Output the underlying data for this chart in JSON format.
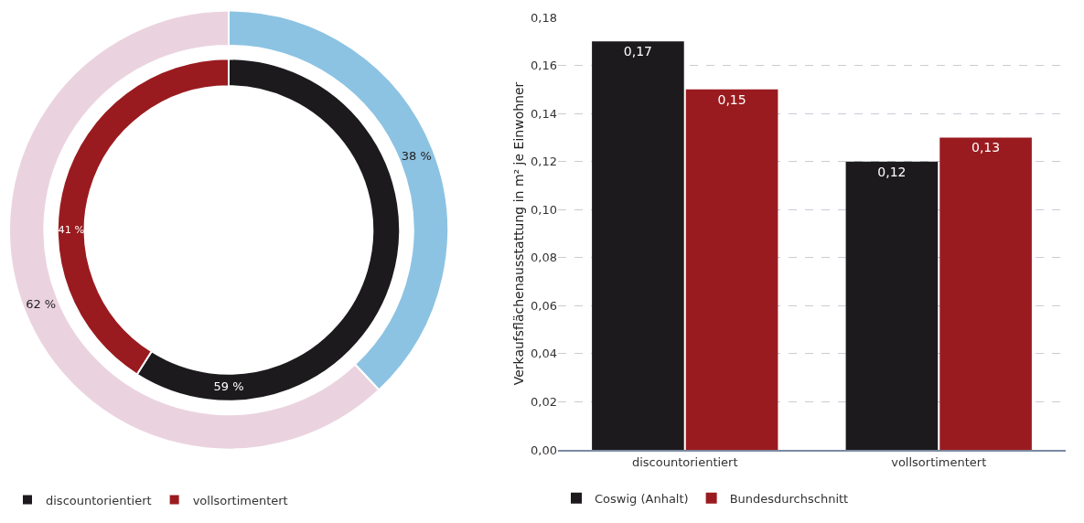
{
  "chart_data": [
    {
      "type": "donut",
      "categories": [
        "discountorientiert",
        "vollsortimentert"
      ],
      "series": [
        {
          "values": [
            59,
            41
          ],
          "colors": [
            "#1c1a1d",
            "#9a1b1f"
          ],
          "value_labels": [
            "59 %",
            "41 %"
          ]
        },
        {
          "values": [
            38,
            62
          ],
          "colors": [
            "#8cc3e3",
            "#ead3df"
          ],
          "value_labels": [
            "38 %",
            "62 %"
          ]
        }
      ],
      "legend": "bottom left"
    },
    {
      "type": "bar",
      "categories": [
        "discountorientiert",
        "vollsortimentert"
      ],
      "ylabel": "Verkaufsflächenausstattung in m² je Einwohner",
      "series": [
        {
          "name": "Coswig (Anhalt)",
          "color": "#1c1a1d",
          "values": [
            0.17,
            0.12
          ],
          "value_labels": [
            "0,17",
            "0,12"
          ]
        },
        {
          "name": "Bundesdurchschnitt",
          "color": "#9a1b1f",
          "values": [
            0.15,
            0.13
          ],
          "value_labels": [
            "0,15",
            "0,13"
          ]
        }
      ],
      "ylim": [
        0,
        0.18
      ],
      "yticks": [
        {
          "value": 0,
          "label": "0,00"
        },
        {
          "value": 0.02,
          "label": "0,02"
        },
        {
          "value": 0.04,
          "label": "0,04"
        },
        {
          "value": 0.06,
          "label": "0,06"
        },
        {
          "value": 0.08,
          "label": "0,08"
        },
        {
          "value": 0.1,
          "label": "0,10"
        },
        {
          "value": 0.12,
          "label": "0,12"
        },
        {
          "value": 0.14,
          "label": "0,14"
        },
        {
          "value": 0.16,
          "label": "0,16"
        },
        {
          "value": 0.18,
          "label": "0,18"
        }
      ],
      "grid": "y",
      "legend": "bottom left"
    }
  ]
}
